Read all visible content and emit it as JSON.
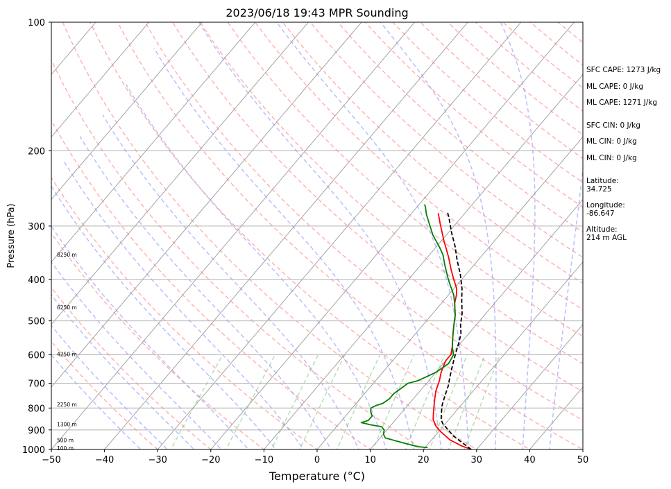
{
  "chart_data": {
    "type": "line",
    "title": "2023/06/18 19:43 MPR Sounding",
    "xlabel": "Temperature (°C)",
    "ylabel": "Pressure (hPa)",
    "xlim": [
      -50,
      50
    ],
    "ylim": [
      1000,
      100
    ],
    "y_scale": "log",
    "grid": true,
    "x_ticks": [
      "−50",
      "−40",
      "−30",
      "−20",
      "−10",
      "0",
      "10",
      "20",
      "30",
      "40",
      "50"
    ],
    "y_ticks": [
      "100",
      "200",
      "300",
      "400",
      "500",
      "600",
      "700",
      "800",
      "900",
      "1000"
    ],
    "height_labels": [
      {
        "p": 350,
        "text": "8250 m"
      },
      {
        "p": 465,
        "text": "6250 m"
      },
      {
        "p": 598,
        "text": "4250 m"
      },
      {
        "p": 785,
        "text": "2250 m"
      },
      {
        "p": 872,
        "text": "1300 m"
      },
      {
        "p": 950,
        "text": "500 m"
      },
      {
        "p": 993,
        "text": "100 m"
      }
    ],
    "series": [
      {
        "color": "#ff0000",
        "style": "solid",
        "points": [
          [
            29.0,
            1000
          ],
          [
            26.5,
            980
          ],
          [
            23.5,
            950
          ],
          [
            20.5,
            910
          ],
          [
            18.5,
            880
          ],
          [
            17.0,
            850
          ],
          [
            16.0,
            820
          ],
          [
            15.0,
            790
          ],
          [
            14.0,
            760
          ],
          [
            13.0,
            730
          ],
          [
            12.5,
            710
          ],
          [
            12.0,
            690
          ],
          [
            11.0,
            660
          ],
          [
            10.5,
            640
          ],
          [
            10.0,
            620
          ],
          [
            10.0,
            600
          ],
          [
            9.0,
            575
          ],
          [
            7.5,
            545
          ],
          [
            6.0,
            515
          ],
          [
            4.5,
            485
          ],
          [
            2.5,
            455
          ],
          [
            1.5,
            435
          ],
          [
            0.5,
            420
          ],
          [
            -1.5,
            400
          ],
          [
            -3.5,
            380
          ],
          [
            -6.0,
            355
          ],
          [
            -9.5,
            325
          ],
          [
            -13.0,
            296
          ],
          [
            -15.0,
            280
          ]
        ]
      },
      {
        "color": "#008000",
        "style": "solid",
        "points": [
          [
            20.5,
            990
          ],
          [
            18.5,
            985
          ],
          [
            16.0,
            970
          ],
          [
            13.5,
            955
          ],
          [
            11.0,
            940
          ],
          [
            10.0,
            920
          ],
          [
            9.5,
            900
          ],
          [
            8.5,
            885
          ],
          [
            6.0,
            875
          ],
          [
            4.0,
            865
          ],
          [
            5.0,
            855
          ],
          [
            5.0,
            835
          ],
          [
            4.0,
            815
          ],
          [
            3.5,
            800
          ],
          [
            4.0,
            790
          ],
          [
            5.0,
            780
          ],
          [
            5.5,
            760
          ],
          [
            5.5,
            740
          ],
          [
            6.0,
            720
          ],
          [
            6.5,
            700
          ],
          [
            8.0,
            690
          ],
          [
            10.0,
            660
          ],
          [
            11.0,
            630
          ],
          [
            10.5,
            600
          ],
          [
            9.0,
            575
          ],
          [
            7.5,
            545
          ],
          [
            6.0,
            515
          ],
          [
            4.5,
            485
          ],
          [
            2.5,
            455
          ],
          [
            1.0,
            435
          ],
          [
            -1.5,
            410
          ],
          [
            -3.0,
            395
          ],
          [
            -5.5,
            370
          ],
          [
            -7.5,
            350
          ],
          [
            -9.5,
            335
          ],
          [
            -12.5,
            315
          ],
          [
            -14.5,
            300
          ],
          [
            -17.0,
            282
          ],
          [
            -18.5,
            270
          ],
          [
            -19.0,
            267
          ]
        ]
      },
      {
        "color": "#000000",
        "style": "dashed",
        "points": [
          [
            29.0,
            1000
          ],
          [
            23.5,
            930
          ],
          [
            19.5,
            870
          ],
          [
            18.5,
            850
          ],
          [
            17.5,
            820
          ],
          [
            16.5,
            790
          ],
          [
            15.5,
            750
          ],
          [
            14.5,
            710
          ],
          [
            13.5,
            680
          ],
          [
            12.5,
            650
          ],
          [
            11.5,
            620
          ],
          [
            10.5,
            590
          ],
          [
            9.5,
            560
          ],
          [
            8.5,
            535
          ],
          [
            7.0,
            510
          ],
          [
            5.5,
            480
          ],
          [
            3.5,
            450
          ],
          [
            1.5,
            420
          ],
          [
            -1.0,
            390
          ],
          [
            -4.0,
            360
          ],
          [
            -6.5,
            335
          ],
          [
            -9.5,
            310
          ],
          [
            -12.5,
            285
          ],
          [
            -13.5,
            278
          ]
        ]
      }
    ],
    "annotations": {
      "sfc_cape": "SFC CAPE: 1273 J/kg",
      "ml_cape_1": "ML CAPE: 0 J/kg",
      "ml_cape_2": "ML CAPE: 1271 J/kg",
      "sfc_cin": "SFC CIN: 0 J/kg",
      "ml_cin_1": "ML CIN: 0 J/kg",
      "ml_cin_2": "ML CIN: 0 J/kg",
      "latitude": "Latitude:\n34.725",
      "longitude": "Longitude:\n-86.647",
      "altitude": "Altitude:\n214 m AGL"
    }
  }
}
